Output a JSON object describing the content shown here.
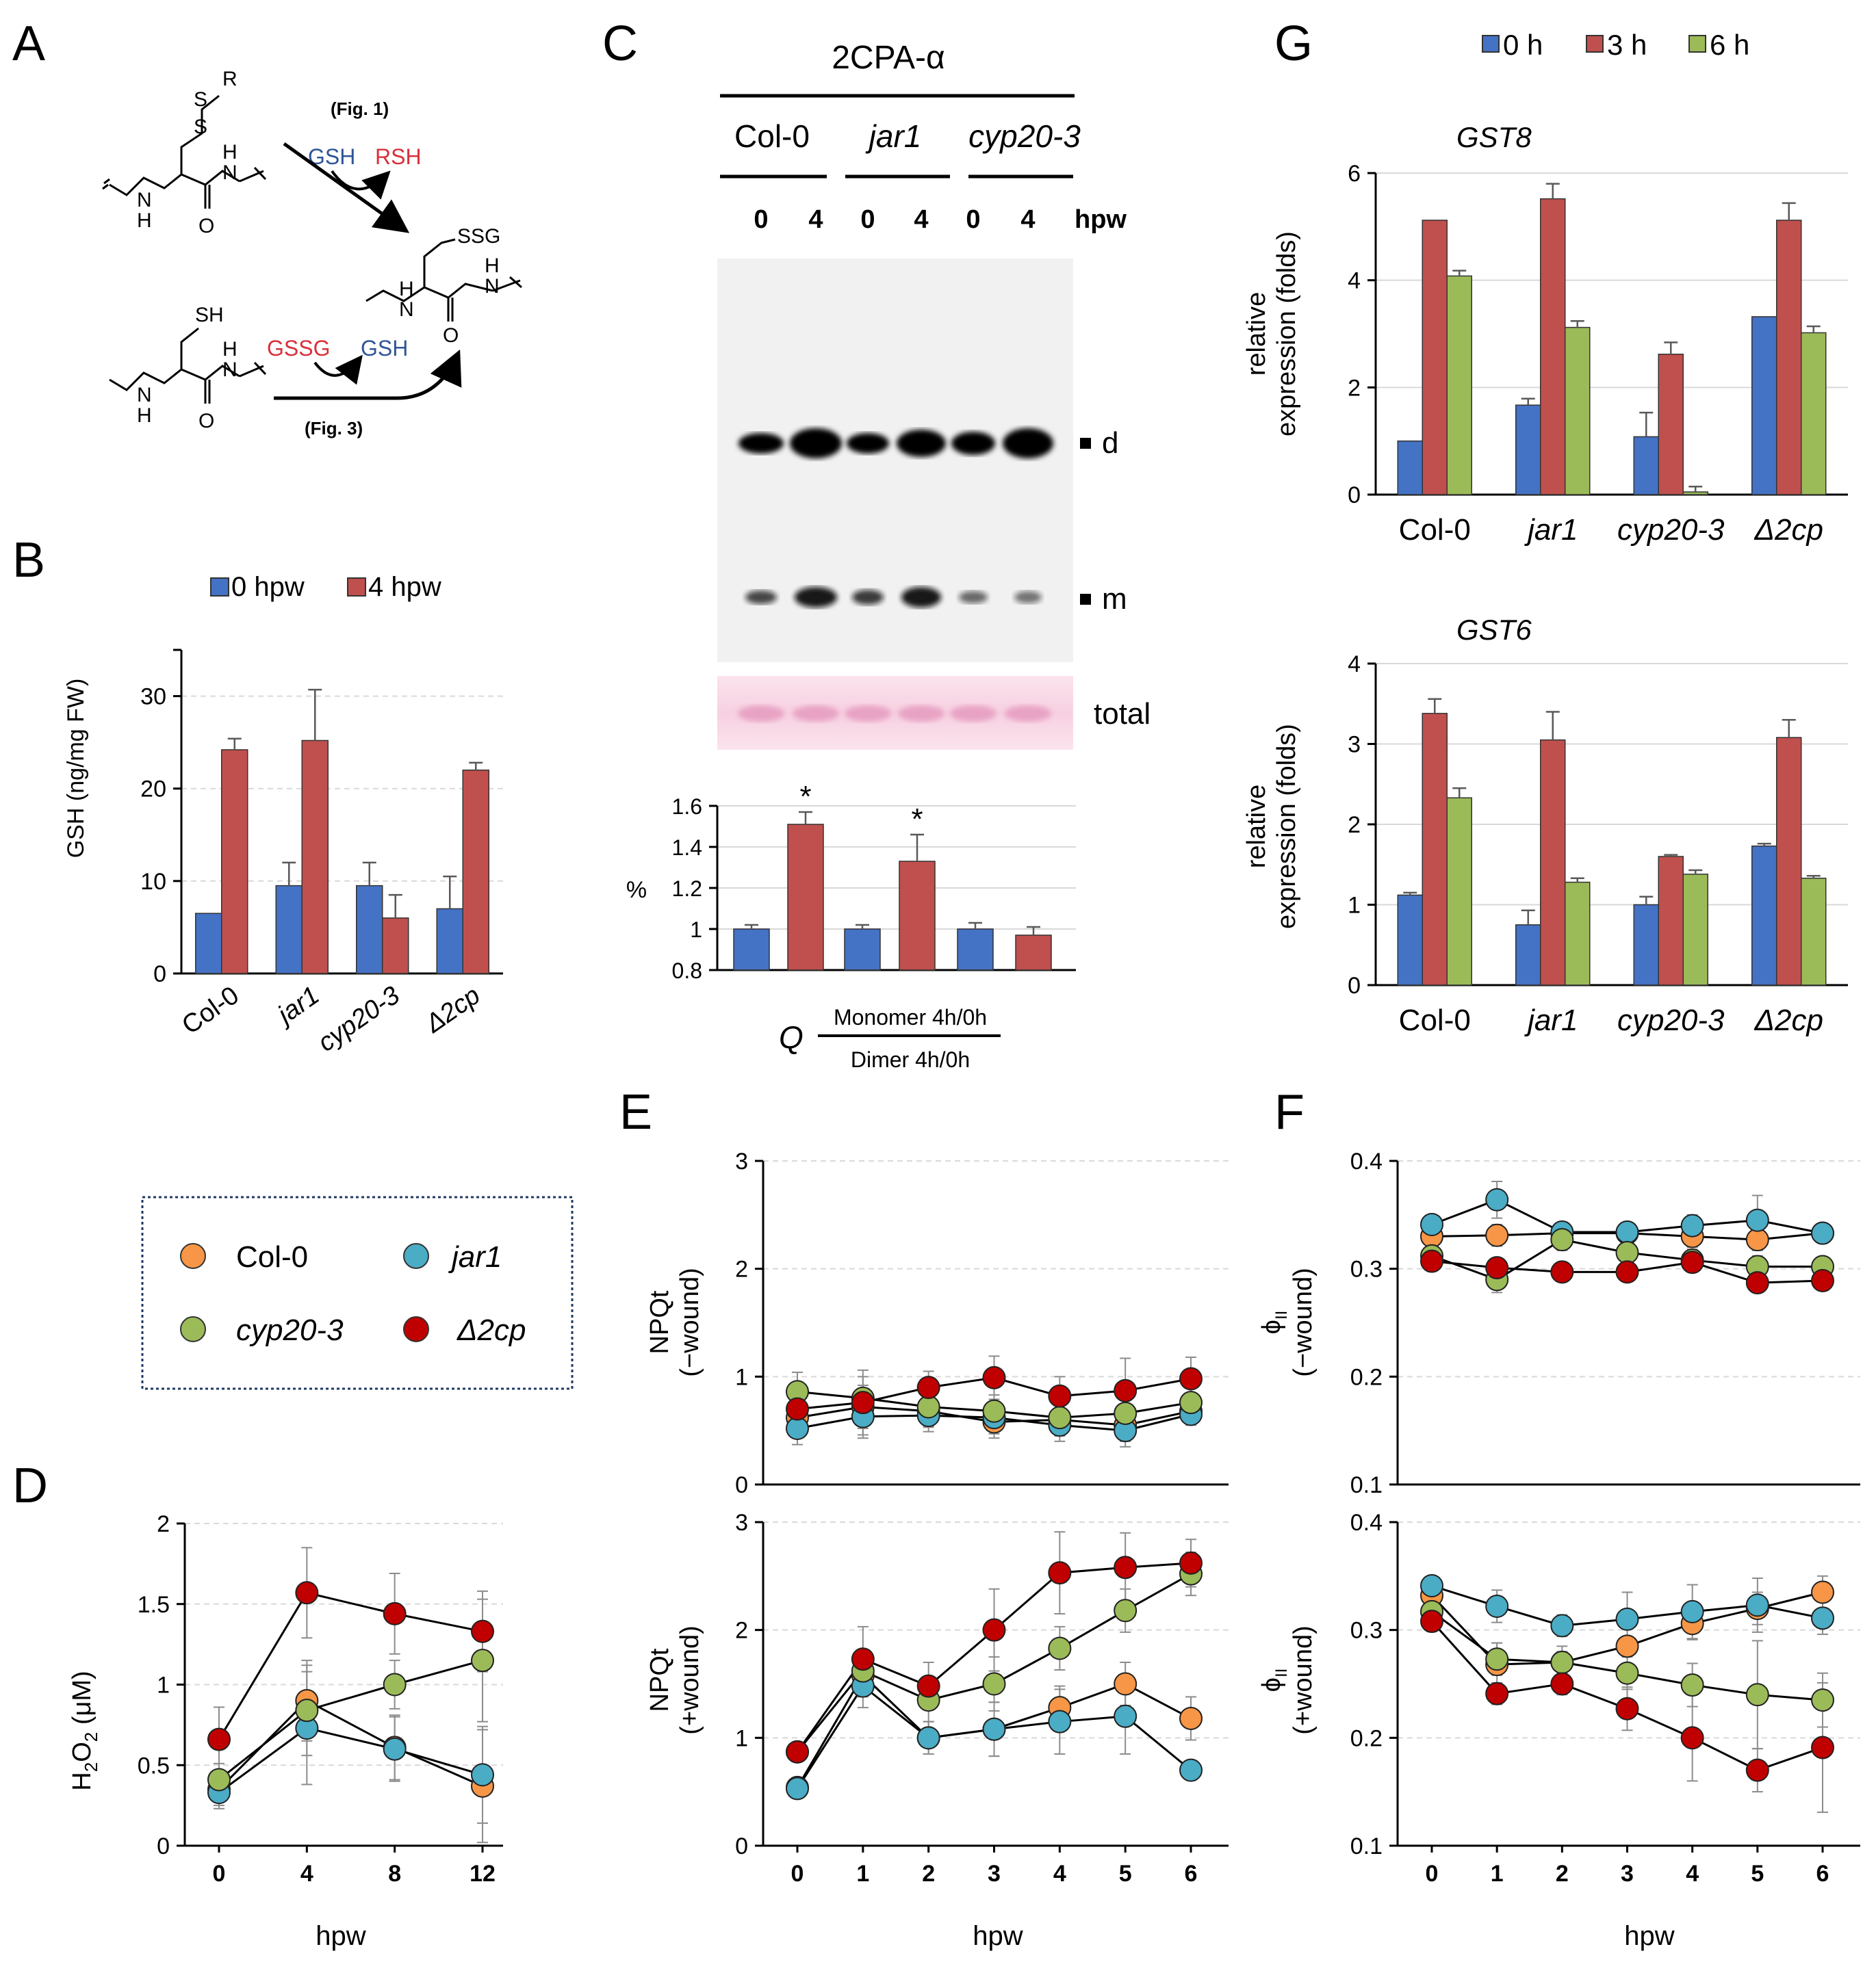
{
  "colors": {
    "blue": "#4472C4",
    "red": "#C0504D",
    "green": "#9BBB59",
    "orange": "#F79646",
    "cyan": "#4BACC6",
    "darkred": "#C00000",
    "grid": "#D9D9D9",
    "err": "#595959",
    "gsh_blue": "#2E5597",
    "gssg_red": "#D9303A"
  },
  "panel_a": {
    "letter": "A",
    "fig1": "(Fig. 1)",
    "fig3": "(Fig. 3)",
    "gsh_top": "GSH",
    "rsh": "RSH",
    "gssg": "GSSG",
    "gsh_bottom": "GSH",
    "s": "S",
    "r": "R",
    "sh": "SH",
    "ssg": "SSG",
    "n": "N",
    "h": "H",
    "o": "O"
  },
  "panel_b": {
    "letter": "B",
    "legend": [
      "0 hpw",
      "4 hpw"
    ],
    "ylabel": "GSH (ng/mg FW)",
    "categories": [
      "Col-0",
      "jar1",
      "cyp20-3",
      "Δ2cp"
    ],
    "yticks": [
      "0",
      "10",
      "20",
      "30"
    ]
  },
  "panel_c": {
    "letter": "C",
    "antibody": "2CPA-α",
    "genotypes": [
      "Col-0",
      "jar1",
      "cyp20-3"
    ],
    "lanes": [
      "0",
      "4",
      "0",
      "4",
      "0",
      "4"
    ],
    "hpw": "hpw",
    "band_d": "d",
    "band_m": "m",
    "total": "total",
    "ylabel": "%",
    "yticks": [
      "0.8",
      "1",
      "1.2",
      "1.4",
      "1.6"
    ],
    "star": "*",
    "q": "Q",
    "q_num": "Monomer 4h/0h",
    "q_den": "Dimer 4h/0h"
  },
  "legend_box": {
    "items": [
      "Col-0",
      "jar1",
      "cyp20-3",
      "Δ2cp"
    ]
  },
  "panel_d": {
    "letter": "D",
    "ylabel_main": "H",
    "ylabel_sub": "2",
    "ylabel_o": "O",
    "ylabel_rest": " (μM)",
    "xlabel": "hpw",
    "xticks": [
      "0",
      "4",
      "8",
      "12"
    ],
    "yticks": [
      "0",
      "0.5",
      "1",
      "1.5",
      "2"
    ]
  },
  "panel_e": {
    "letter": "E",
    "ylabel_top": "NPQt",
    "ylabel_top2": "(−wound)",
    "ylabel_bot": "NPQt",
    "ylabel_bot2": "(+wound)",
    "xlabel": "hpw",
    "xticks": [
      "0",
      "1",
      "2",
      "3",
      "4",
      "5",
      "6"
    ],
    "yticks": [
      "0",
      "1",
      "2",
      "3"
    ]
  },
  "panel_f": {
    "letter": "F",
    "phi": "ϕ",
    "phi_sub": "II",
    "ylabel_top2": "(−wound)",
    "ylabel_bot2": "(+wound)",
    "xlabel": "hpw",
    "xticks": [
      "0",
      "1",
      "2",
      "3",
      "4",
      "5",
      "6"
    ],
    "yticks": [
      "0.1",
      "0.2",
      "0.3",
      "0.4"
    ]
  },
  "panel_g": {
    "letter": "G",
    "legend": [
      "0 h",
      "3 h",
      "6 h"
    ],
    "title_top": "GST8",
    "title_bot": "GST6",
    "ylabel1": "relative",
    "ylabel2": "expression (folds)",
    "categories": [
      "Col-0",
      "jar1",
      "cyp20-3",
      "Δ2cp"
    ],
    "yticks_top": [
      "0",
      "2",
      "4",
      "6"
    ],
    "yticks_bot": [
      "0",
      "1",
      "2",
      "3",
      "4"
    ]
  },
  "chart_data": [
    {
      "id": "B",
      "type": "bar",
      "title": "",
      "ylabel": "GSH (ng/mg FW)",
      "ylim": [
        0,
        35
      ],
      "categories": [
        "Col-0",
        "jar1",
        "cyp20-3",
        "Δ2cp"
      ],
      "series": [
        {
          "name": "0 hpw",
          "values": [
            6.5,
            9.5,
            9.5,
            7.0
          ],
          "errors": [
            0,
            2.5,
            2.5,
            3.5
          ]
        },
        {
          "name": "4 hpw",
          "values": [
            24.2,
            25.2,
            6.0,
            22.0
          ],
          "errors": [
            1.2,
            5.5,
            2.5,
            0.8
          ]
        }
      ]
    },
    {
      "id": "C",
      "type": "bar",
      "ylabel": "%",
      "ylim": [
        0.8,
        1.6
      ],
      "categories": [
        "Col-0 0",
        "Col-0 4",
        "jar1 0",
        "jar1 4",
        "cyp20-3 0",
        "cyp20-3 4"
      ],
      "values": [
        1.0,
        1.51,
        1.0,
        1.33,
        1.0,
        0.97
      ],
      "errors": [
        0.02,
        0.06,
        0.02,
        0.13,
        0.03,
        0.04
      ],
      "significant": [
        false,
        true,
        false,
        true,
        false,
        false
      ]
    },
    {
      "id": "G-GST8",
      "type": "bar",
      "title": "GST8",
      "ylabel": "relative expression (folds)",
      "ylim": [
        0,
        6
      ],
      "categories": [
        "Col-0",
        "jar1",
        "cyp20-3",
        "Δ2cp"
      ],
      "series": [
        {
          "name": "0 h",
          "values": [
            1.0,
            1.67,
            1.08,
            3.32
          ],
          "errors": [
            0,
            0.12,
            0.45,
            0
          ]
        },
        {
          "name": "3 h",
          "values": [
            5.12,
            5.52,
            2.62,
            5.12
          ],
          "errors": [
            0,
            0.28,
            0.22,
            0.32
          ]
        },
        {
          "name": "6 h",
          "values": [
            4.08,
            3.12,
            0.05,
            3.02
          ],
          "errors": [
            0.1,
            0.12,
            0.1,
            0.12
          ]
        }
      ]
    },
    {
      "id": "G-GST6",
      "type": "bar",
      "title": "GST6",
      "ylabel": "relative expression (folds)",
      "ylim": [
        0,
        4
      ],
      "categories": [
        "Col-0",
        "jar1",
        "cyp20-3",
        "Δ2cp"
      ],
      "series": [
        {
          "name": "0 h",
          "values": [
            1.12,
            0.75,
            1.0,
            1.73
          ],
          "errors": [
            0.03,
            0.18,
            0.1,
            0.03
          ]
        },
        {
          "name": "3 h",
          "values": [
            3.38,
            3.05,
            1.6,
            3.08
          ],
          "errors": [
            0.18,
            0.35,
            0.02,
            0.22
          ]
        },
        {
          "name": "6 h",
          "values": [
            2.33,
            1.28,
            1.38,
            1.33
          ],
          "errors": [
            0.12,
            0.05,
            0.05,
            0.03
          ]
        }
      ]
    },
    {
      "id": "D",
      "type": "line",
      "xlabel": "hpw",
      "ylabel": "H2O2 (μM)",
      "ylim": [
        0,
        2
      ],
      "x": [
        0,
        4,
        8,
        12
      ],
      "series": [
        {
          "name": "Col-0",
          "values": [
            0.35,
            0.9,
            0.61,
            0.37
          ],
          "errors": [
            0.1,
            0.25,
            0.2,
            0.35
          ]
        },
        {
          "name": "jar1",
          "values": [
            0.33,
            0.73,
            0.6,
            0.44
          ],
          "errors": [
            0.1,
            0.35,
            0.2,
            0.3
          ]
        },
        {
          "name": "cyp20-3",
          "values": [
            0.41,
            0.84,
            1.0,
            1.15
          ],
          "errors": [
            0.1,
            0.28,
            0.15,
            0.38
          ]
        },
        {
          "name": "Δ2cp",
          "values": [
            0.66,
            1.57,
            1.44,
            1.33
          ],
          "errors": [
            0.2,
            0.28,
            0.25,
            0.25
          ]
        }
      ]
    },
    {
      "id": "E-top",
      "type": "line",
      "ylabel": "NPQt (−wound)",
      "ylim": [
        0,
        3
      ],
      "x": [
        0,
        1,
        2,
        3,
        4,
        5,
        6
      ],
      "series": [
        {
          "name": "Col-0",
          "values": [
            0.62,
            0.72,
            0.68,
            0.58,
            0.6,
            0.55,
            0.68
          ],
          "errors": [
            0.15,
            0.2,
            0.15,
            0.15,
            0.15,
            0.15,
            0.1
          ]
        },
        {
          "name": "jar1",
          "values": [
            0.52,
            0.63,
            0.64,
            0.62,
            0.55,
            0.5,
            0.65
          ],
          "errors": [
            0.15,
            0.2,
            0.15,
            0.15,
            0.15,
            0.15,
            0.1
          ]
        },
        {
          "name": "cyp20-3",
          "values": [
            0.86,
            0.8,
            0.72,
            0.68,
            0.62,
            0.66,
            0.76
          ],
          "errors": [
            0.18,
            0.2,
            0.18,
            0.15,
            0.15,
            0.15,
            0.15
          ]
        },
        {
          "name": "Δ2cp",
          "values": [
            0.7,
            0.76,
            0.9,
            0.99,
            0.82,
            0.87,
            0.98
          ],
          "errors": [
            0.18,
            0.3,
            0.15,
            0.2,
            0.18,
            0.3,
            0.2
          ]
        }
      ]
    },
    {
      "id": "E-bottom",
      "type": "line",
      "xlabel": "hpw",
      "ylabel": "NPQt (+wound)",
      "ylim": [
        0,
        3
      ],
      "x": [
        0,
        1,
        2,
        3,
        4,
        5,
        6
      ],
      "series": [
        {
          "name": "Col-0",
          "values": [
            0.54,
            1.58,
            1.0,
            1.08,
            1.28,
            1.5,
            1.18
          ],
          "errors": [
            0.05,
            0.2,
            0.15,
            0.25,
            0.2,
            0.2,
            0.2
          ]
        },
        {
          "name": "jar1",
          "values": [
            0.53,
            1.48,
            1.0,
            1.08,
            1.15,
            1.2,
            0.7
          ],
          "errors": [
            0.05,
            0.2,
            0.15,
            0.25,
            0.3,
            0.35,
            0.05
          ]
        },
        {
          "name": "cyp20-3",
          "values": [
            0.87,
            1.62,
            1.35,
            1.5,
            1.83,
            2.18,
            2.52
          ],
          "errors": [
            0.05,
            0.2,
            0.2,
            0.25,
            0.2,
            0.2,
            0.2
          ]
        },
        {
          "name": "Δ2cp",
          "values": [
            0.87,
            1.73,
            1.48,
            2.0,
            2.53,
            2.58,
            2.62
          ],
          "errors": [
            0.05,
            0.3,
            0.22,
            0.38,
            0.38,
            0.32,
            0.22
          ]
        }
      ]
    },
    {
      "id": "F-top",
      "type": "line",
      "ylabel": "ϕII (−wound)",
      "ylim": [
        0.1,
        0.4
      ],
      "x": [
        0,
        1,
        2,
        3,
        4,
        5,
        6
      ],
      "series": [
        {
          "name": "Col-0",
          "values": [
            0.33,
            0.331,
            0.333,
            0.333,
            0.33,
            0.327,
            0.333
          ],
          "errors": [
            0.01,
            0.01,
            0.005,
            0.005,
            0.01,
            0.01,
            0.005
          ]
        },
        {
          "name": "jar1",
          "values": [
            0.341,
            0.364,
            0.334,
            0.334,
            0.34,
            0.345,
            0.333
          ],
          "errors": [
            0.008,
            0.017,
            0.005,
            0.005,
            0.01,
            0.023,
            0.005
          ]
        },
        {
          "name": "cyp20-3",
          "values": [
            0.312,
            0.29,
            0.327,
            0.315,
            0.308,
            0.302,
            0.302
          ],
          "errors": [
            0.01,
            0.012,
            0.01,
            0.01,
            0.01,
            0.01,
            0.008
          ]
        },
        {
          "name": "Δ2cp",
          "values": [
            0.307,
            0.301,
            0.297,
            0.297,
            0.306,
            0.287,
            0.289
          ],
          "errors": [
            0.008,
            0.008,
            0.005,
            0.005,
            0.008,
            0.008,
            0.005
          ]
        }
      ]
    },
    {
      "id": "F-bottom",
      "type": "line",
      "xlabel": "hpw",
      "ylabel": "ϕII (+wound)",
      "ylim": [
        0.1,
        0.4
      ],
      "x": [
        0,
        1,
        2,
        3,
        4,
        5,
        6
      ],
      "series": [
        {
          "name": "Col-0",
          "values": [
            0.332,
            0.268,
            0.27,
            0.285,
            0.306,
            0.32,
            0.335
          ],
          "errors": [
            0.01,
            0.02,
            0.015,
            0.02,
            0.015,
            0.015,
            0.015
          ]
        },
        {
          "name": "jar1",
          "values": [
            0.341,
            0.322,
            0.304,
            0.31,
            0.317,
            0.323,
            0.311
          ],
          "errors": [
            0.008,
            0.015,
            0.01,
            0.025,
            0.025,
            0.025,
            0.015
          ]
        },
        {
          "name": "cyp20-3",
          "values": [
            0.317,
            0.273,
            0.27,
            0.26,
            0.249,
            0.24,
            0.235
          ],
          "errors": [
            0.008,
            0.015,
            0.01,
            0.015,
            0.02,
            0.05,
            0.025
          ]
        },
        {
          "name": "Δ2cp",
          "values": [
            0.308,
            0.241,
            0.25,
            0.227,
            0.2,
            0.17,
            0.191
          ],
          "errors": [
            0.008,
            0.01,
            0.01,
            0.02,
            0.04,
            0.02,
            0.06
          ]
        }
      ]
    }
  ]
}
